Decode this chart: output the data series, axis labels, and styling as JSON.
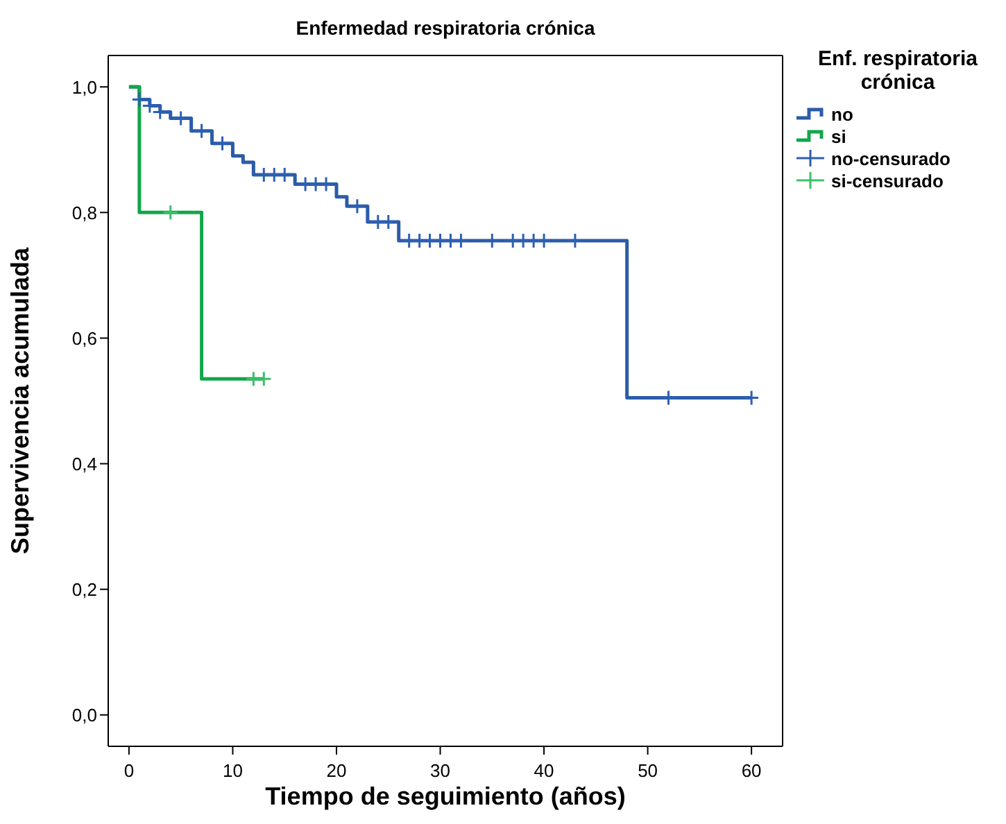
{
  "chart_data": {
    "type": "step",
    "title": "Enfermedad respiratoria crónica",
    "xlabel": "Tiempo de seguimiento (años)",
    "ylabel": "Supervivencia acumulada",
    "legend_title": "Enf. respiratoria crónica",
    "legend": "right",
    "xlim": [
      -2,
      63
    ],
    "xticks": [
      0,
      10,
      20,
      30,
      40,
      50,
      60
    ],
    "ylim": [
      -0.05,
      1.05
    ],
    "yticks": [
      {
        "value": 0,
        "label": "0,0"
      },
      {
        "value": 0.2,
        "label": "0,2"
      },
      {
        "value": 0.4,
        "label": "0,4"
      },
      {
        "value": 0.6,
        "label": "0,6"
      },
      {
        "value": 0.8,
        "label": "0,8"
      },
      {
        "value": 1,
        "label": "1,0"
      }
    ],
    "grid": false,
    "series": [
      {
        "name": "no",
        "type": "step",
        "marker": "none",
        "color": "#2b5ca8",
        "x": [
          0,
          1,
          2,
          3,
          4,
          6,
          8,
          10,
          11,
          12,
          16,
          20,
          21,
          23,
          26,
          48,
          60
        ],
        "values": [
          1.0,
          0.98,
          0.97,
          0.96,
          0.95,
          0.93,
          0.91,
          0.89,
          0.88,
          0.86,
          0.845,
          0.825,
          0.81,
          0.785,
          0.755,
          0.505,
          0.505
        ]
      },
      {
        "name": "si",
        "type": "step",
        "marker": "none",
        "color": "#12a64a",
        "x": [
          0,
          1,
          7,
          13
        ],
        "values": [
          1.0,
          0.8,
          0.535,
          0.535
        ]
      },
      {
        "name": "no-censurado",
        "type": "scatter",
        "marker": "cross",
        "color": "#2d5fb3",
        "x": [
          1,
          2,
          3,
          5,
          7,
          9,
          13,
          14,
          15,
          17,
          18,
          19,
          22,
          24,
          25,
          27,
          28,
          29,
          30,
          31,
          32,
          35,
          37,
          38,
          39,
          40,
          43,
          52,
          60
        ],
        "values": [
          0.98,
          0.97,
          0.96,
          0.95,
          0.93,
          0.91,
          0.86,
          0.86,
          0.86,
          0.845,
          0.845,
          0.845,
          0.81,
          0.785,
          0.785,
          0.755,
          0.755,
          0.755,
          0.755,
          0.755,
          0.755,
          0.755,
          0.755,
          0.755,
          0.755,
          0.755,
          0.755,
          0.505,
          0.505
        ]
      },
      {
        "name": "si-censurado",
        "type": "scatter",
        "marker": "cross",
        "color": "#3cbf6a",
        "x": [
          4,
          12,
          13
        ],
        "values": [
          0.8,
          0.535,
          0.535
        ]
      }
    ]
  }
}
